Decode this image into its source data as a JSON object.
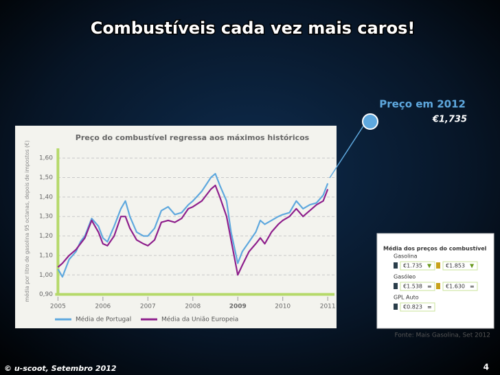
{
  "slide": {
    "title": "Combustíveis cada vez mais caros!",
    "annotation": {
      "label": "Preço em 2012",
      "value": "€1,735"
    },
    "price_box": {
      "title": "Média dos preços do combustível",
      "fuels": [
        {
          "name": "Gasolina",
          "prices": [
            "€1.735",
            "€1.853"
          ],
          "trends": [
            "▼",
            "▼"
          ]
        },
        {
          "name": "Gasóleo",
          "prices": [
            "€1.538",
            "€1.630"
          ],
          "trends": [
            "=",
            "="
          ]
        },
        {
          "name": "GPL Auto",
          "prices": [
            "€0.823"
          ],
          "trends": [
            "="
          ]
        }
      ]
    },
    "source": "Fonte: Mais Gasolina, Set 2012",
    "footer": "© u-scoot, Setembro 2012",
    "page": "4"
  },
  "chart_data": {
    "type": "line",
    "title": "Preço do combustível regressa aos máximos históricos",
    "y_label": "média por litro de gasolina 95 octanas, depois de impostos (€)",
    "x": [
      2005.0,
      2005.1,
      2005.25,
      2005.4,
      2005.5,
      2005.6,
      2005.75,
      2005.9,
      2006.0,
      2006.1,
      2006.25,
      2006.4,
      2006.5,
      2006.6,
      2006.75,
      2006.9,
      2007.0,
      2007.15,
      2007.3,
      2007.45,
      2007.6,
      2007.75,
      2007.9,
      2008.0,
      2008.2,
      2008.4,
      2008.5,
      2008.6,
      2008.75,
      2008.85,
      2009.0,
      2009.1,
      2009.25,
      2009.4,
      2009.5,
      2009.6,
      2009.75,
      2009.9,
      2010.0,
      2010.15,
      2010.3,
      2010.45,
      2010.6,
      2010.75,
      2010.9,
      2011.0
    ],
    "series": [
      {
        "name": "Média de Portugal",
        "color": "#5ea8de",
        "values": [
          1.03,
          0.99,
          1.08,
          1.12,
          1.17,
          1.2,
          1.29,
          1.25,
          1.19,
          1.17,
          1.25,
          1.34,
          1.38,
          1.3,
          1.22,
          1.2,
          1.2,
          1.24,
          1.33,
          1.35,
          1.31,
          1.32,
          1.36,
          1.38,
          1.43,
          1.5,
          1.52,
          1.46,
          1.38,
          1.22,
          1.06,
          1.12,
          1.17,
          1.22,
          1.28,
          1.26,
          1.28,
          1.3,
          1.31,
          1.32,
          1.38,
          1.34,
          1.36,
          1.37,
          1.41,
          1.47
        ]
      },
      {
        "name": "Média da União Europeia",
        "color": "#8e1f8c",
        "values": [
          1.04,
          1.06,
          1.1,
          1.13,
          1.16,
          1.19,
          1.28,
          1.22,
          1.16,
          1.15,
          1.2,
          1.3,
          1.3,
          1.24,
          1.18,
          1.16,
          1.15,
          1.18,
          1.27,
          1.28,
          1.27,
          1.29,
          1.34,
          1.35,
          1.38,
          1.44,
          1.46,
          1.4,
          1.3,
          1.18,
          1.0,
          1.05,
          1.12,
          1.16,
          1.19,
          1.16,
          1.22,
          1.26,
          1.28,
          1.3,
          1.34,
          1.3,
          1.33,
          1.36,
          1.38,
          1.44
        ]
      }
    ],
    "xlim": [
      2004.75,
      2011.15
    ],
    "xticks": [
      2005,
      2006,
      2007,
      2008,
      2009,
      2010,
      2011
    ],
    "ylim": [
      0.86,
      1.65
    ],
    "yticks": [
      {
        "value": 0.9,
        "label": "0,90"
      },
      {
        "value": 1.0,
        "label": "1,00"
      },
      {
        "value": 1.1,
        "label": "1,10"
      },
      {
        "value": 1.2,
        "label": "1,20"
      },
      {
        "value": 1.3,
        "label": "1,30"
      },
      {
        "value": 1.4,
        "label": "1,40"
      },
      {
        "value": 1.5,
        "label": "1,50"
      },
      {
        "value": 1.6,
        "label": "1,60"
      }
    ],
    "grid": true,
    "axis_color": "#b5d96a"
  }
}
